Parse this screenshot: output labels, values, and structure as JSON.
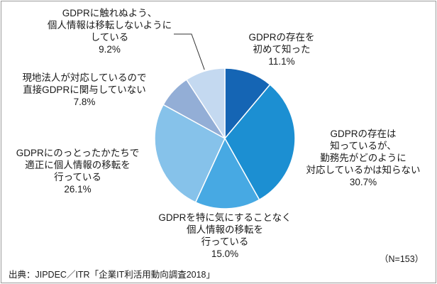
{
  "chart_data": {
    "type": "pie",
    "sample_note": "（N=153）",
    "source": "出典：JIPDEC／ITR「企業IT利活用動向調査2018」",
    "slices": [
      {
        "lines": [
          "GDPRの存在を",
          "初めて知った"
        ],
        "value": 11.1,
        "value_label": "11.1%",
        "color": "#1565b4"
      },
      {
        "lines": [
          "GDPRの存在は",
          "知っているが、",
          "勤務先がどのように",
          "対応しているかは知らない"
        ],
        "value": 30.7,
        "value_label": "30.7%",
        "color": "#1c8fd2"
      },
      {
        "lines": [
          "GDPRを特に気にすることなく",
          "個人情報の移転を",
          "行っている"
        ],
        "value": 15.0,
        "value_label": "15.0%",
        "color": "#47a9e3"
      },
      {
        "lines": [
          "GDPRにのっとったかたちで",
          "適正に個人情報の移転を",
          "行っている"
        ],
        "value": 26.1,
        "value_label": "26.1%",
        "color": "#86c2ea"
      },
      {
        "lines": [
          "現地法人が対応しているので",
          "直接GDPRに関与していない"
        ],
        "value": 7.8,
        "value_label": "7.8%",
        "color": "#93aed6"
      },
      {
        "lines": [
          "GDPRに触れぬよう、",
          "個人情報は移転しないように",
          "している"
        ],
        "value": 9.2,
        "value_label": "9.2%",
        "color": "#c4d9f0"
      }
    ]
  }
}
